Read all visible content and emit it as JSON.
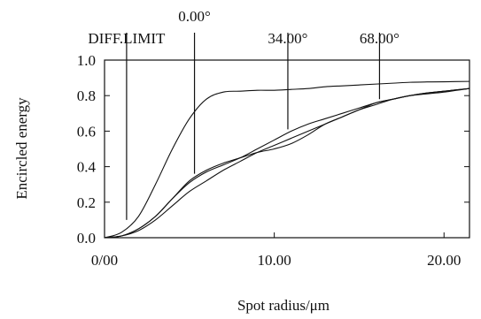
{
  "chart_data": {
    "type": "line",
    "title": "",
    "xlabel": "Spot radius/μm",
    "ylabel": "Encircled energy",
    "xlim": [
      0,
      21.5
    ],
    "ylim": [
      0,
      1.0
    ],
    "x_ticks": [
      {
        "value": 0,
        "label": "0/00"
      },
      {
        "value": 10,
        "label": "10.00"
      },
      {
        "value": 20,
        "label": "20.00"
      }
    ],
    "y_ticks": [
      {
        "value": 0.0,
        "label": "0.0"
      },
      {
        "value": 0.2,
        "label": "0.2"
      },
      {
        "value": 0.4,
        "label": "0.4"
      },
      {
        "value": 0.6,
        "label": "0.6"
      },
      {
        "value": 0.8,
        "label": "0.8"
      },
      {
        "value": 1.0,
        "label": "1.0"
      }
    ],
    "grid": false,
    "legend": "none",
    "markers": [
      {
        "label": "DIFF.LIMIT",
        "x": 1.3,
        "y_end": 0.1
      },
      {
        "label": "0.00°",
        "x": 5.3,
        "y_end": 0.36
      },
      {
        "label": "34.00°",
        "x": 10.8,
        "y_end": 0.61
      },
      {
        "label": "68.00°",
        "x": 16.2,
        "y_end": 0.78
      }
    ],
    "series": [
      {
        "x": [
          0,
          1,
          2,
          3,
          4,
          5,
          6,
          7,
          8,
          9,
          10,
          11,
          12,
          13,
          14,
          15,
          16,
          17,
          18,
          19,
          20,
          21.5
        ],
        "y": [
          0,
          0.03,
          0.12,
          0.3,
          0.5,
          0.67,
          0.78,
          0.82,
          0.825,
          0.83,
          0.83,
          0.835,
          0.84,
          0.85,
          0.855,
          0.86,
          0.865,
          0.87,
          0.875,
          0.877,
          0.878,
          0.88
        ]
      },
      {
        "x": [
          0,
          1,
          2,
          3,
          4,
          5,
          6,
          7,
          8,
          9,
          10,
          11,
          12,
          13,
          14,
          15,
          16,
          17,
          18,
          19,
          20,
          21.5
        ],
        "y": [
          0,
          0.01,
          0.05,
          0.12,
          0.22,
          0.32,
          0.38,
          0.42,
          0.45,
          0.48,
          0.5,
          0.53,
          0.58,
          0.64,
          0.68,
          0.72,
          0.76,
          0.78,
          0.8,
          0.81,
          0.82,
          0.84
        ]
      },
      {
        "x": [
          0,
          1,
          2,
          3,
          4,
          5,
          6,
          7,
          8,
          9,
          10,
          11,
          12,
          13,
          14,
          15,
          16,
          17,
          18,
          19,
          20,
          21.5
        ],
        "y": [
          0,
          0.01,
          0.05,
          0.12,
          0.22,
          0.31,
          0.37,
          0.41,
          0.45,
          0.5,
          0.55,
          0.6,
          0.64,
          0.67,
          0.7,
          0.73,
          0.76,
          0.78,
          0.8,
          0.815,
          0.825,
          0.84
        ]
      },
      {
        "x": [
          0,
          1,
          2,
          3,
          4,
          5,
          6,
          7,
          8,
          9,
          10,
          11,
          12,
          13,
          14,
          15,
          16,
          17,
          18,
          19,
          20,
          21.5
        ],
        "y": [
          0,
          0.01,
          0.04,
          0.1,
          0.18,
          0.26,
          0.32,
          0.38,
          0.43,
          0.48,
          0.52,
          0.56,
          0.6,
          0.64,
          0.68,
          0.72,
          0.75,
          0.78,
          0.8,
          0.815,
          0.825,
          0.84
        ]
      }
    ]
  }
}
